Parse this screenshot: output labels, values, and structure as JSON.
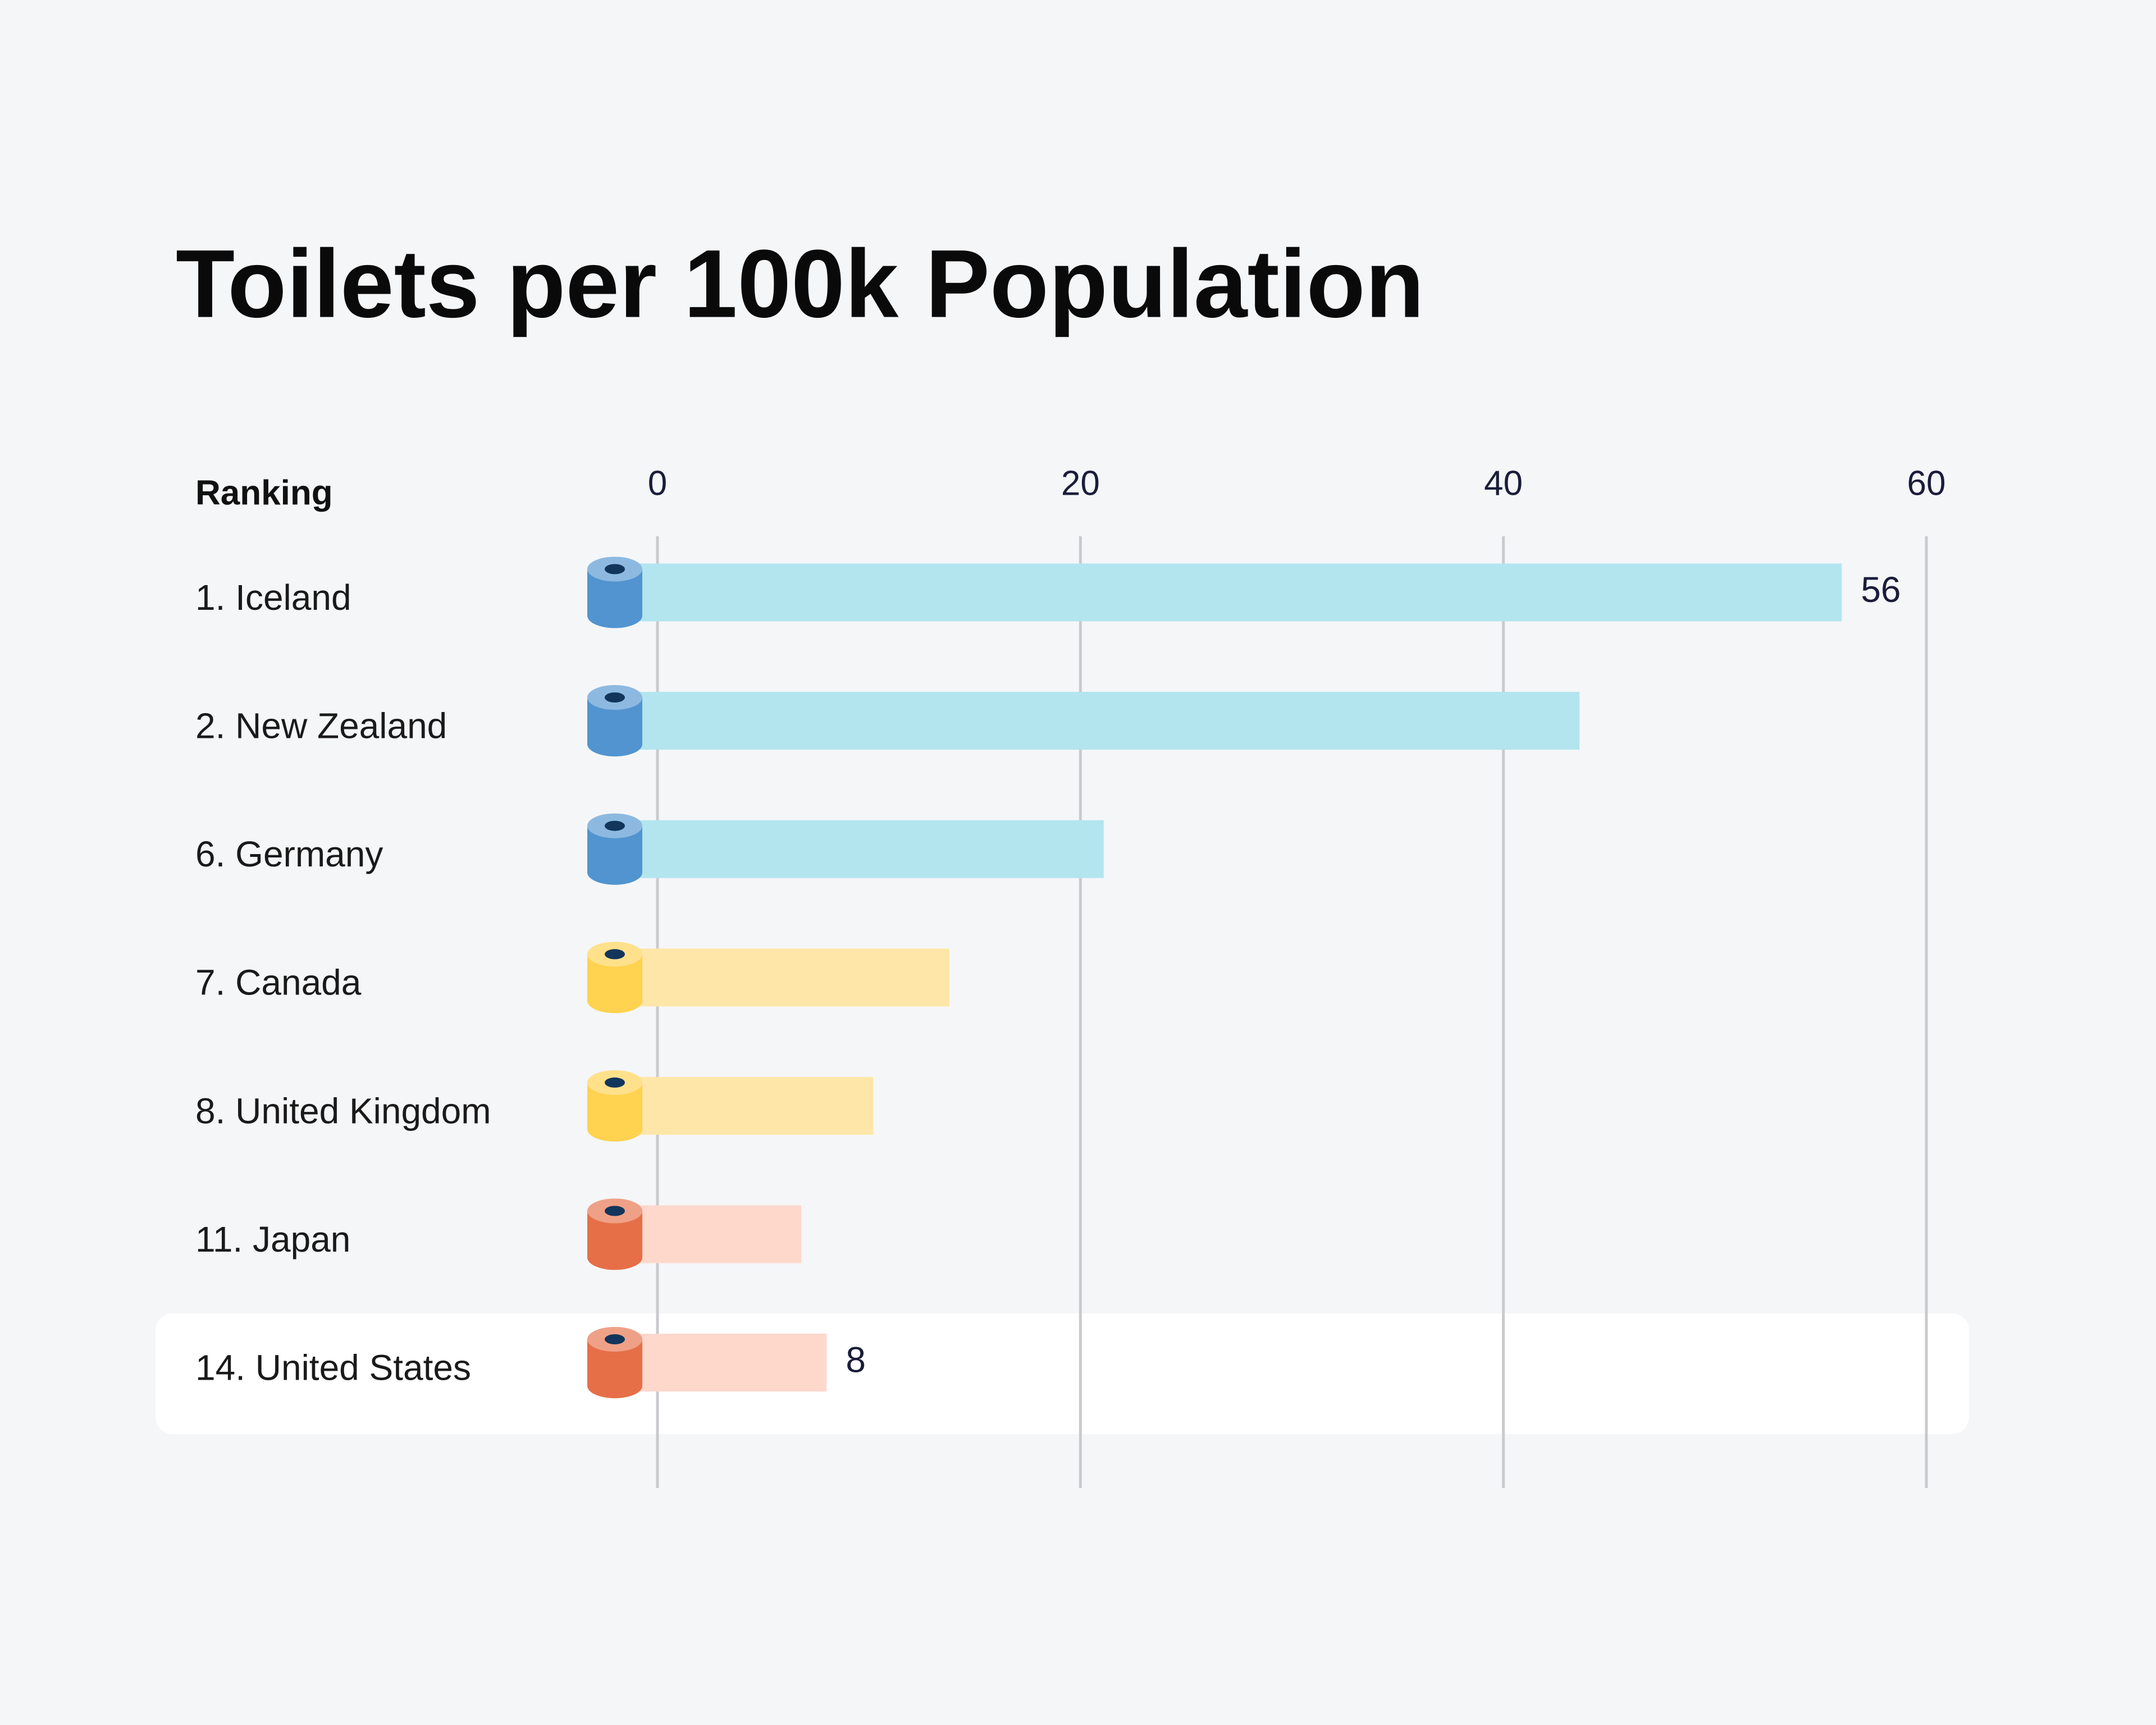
{
  "chart_data": {
    "type": "bar",
    "orientation": "horizontal",
    "title": "Toilets per 100k Population",
    "category_header": "Ranking",
    "categories": [
      "1. Iceland",
      "2. New Zealand",
      "6. Germany",
      "7. Canada",
      "8. United Kingdom",
      "11. Japan",
      "14. United States"
    ],
    "values": [
      56,
      43.6,
      21.1,
      13.8,
      10.2,
      6.8,
      8
    ],
    "show_value": [
      true,
      false,
      false,
      false,
      false,
      false,
      true
    ],
    "colors": [
      "#b3e5ef",
      "#b3e5ef",
      "#b3e5ef",
      "#fde6a8",
      "#fde6a8",
      "#ffd8cc",
      "#ffd8cc"
    ],
    "icon_colors": [
      "#5194d0",
      "#5194d0",
      "#5194d0",
      "#ffd24f",
      "#ffd24f",
      "#e66f48",
      "#e66f48"
    ],
    "xlim": [
      0,
      60
    ],
    "xticks": [
      0,
      20,
      40,
      60
    ],
    "grid": true
  }
}
